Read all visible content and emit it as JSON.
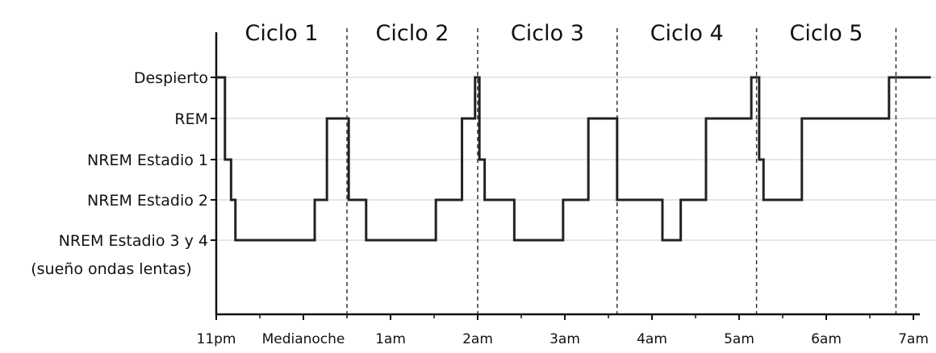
{
  "chart_data": {
    "type": "line",
    "title": "",
    "xlabel": "",
    "ylabel": "",
    "y_levels": [
      {
        "key": "awake",
        "label": "Despierto"
      },
      {
        "key": "rem",
        "label": "REM"
      },
      {
        "key": "n1",
        "label": "NREM Estadio 1"
      },
      {
        "key": "n2",
        "label": "NREM Estadio 2"
      },
      {
        "key": "n34",
        "label": "NREM Estadio 3 y 4"
      }
    ],
    "y_level_note": "(sueño ondas lentas)",
    "x_ticks": [
      "11pm",
      "Medianoche",
      "1am",
      "2am",
      "3am",
      "4am",
      "5am",
      "6am",
      "7am"
    ],
    "x_range_hours": [
      0,
      8.2
    ],
    "cycles": [
      {
        "label": "Ciclo 1",
        "end_hour": 1.5
      },
      {
        "label": "Ciclo 2",
        "end_hour": 3.0
      },
      {
        "label": "Ciclo 3",
        "end_hour": 4.6
      },
      {
        "label": "Ciclo 4",
        "end_hour": 6.2
      },
      {
        "label": "Ciclo 5",
        "end_hour": 7.8
      }
    ],
    "hypnogram": [
      {
        "t": 0.0,
        "level": 0
      },
      {
        "t": 0.1,
        "level": 2
      },
      {
        "t": 0.17,
        "level": 3
      },
      {
        "t": 0.22,
        "level": 4
      },
      {
        "t": 1.13,
        "level": 3
      },
      {
        "t": 1.27,
        "level": 1
      },
      {
        "t": 1.52,
        "level": 3
      },
      {
        "t": 1.72,
        "level": 4
      },
      {
        "t": 2.52,
        "level": 3
      },
      {
        "t": 2.82,
        "level": 1
      },
      {
        "t": 2.97,
        "level": 0
      },
      {
        "t": 3.02,
        "level": 2
      },
      {
        "t": 3.08,
        "level": 3
      },
      {
        "t": 3.42,
        "level": 4
      },
      {
        "t": 3.98,
        "level": 3
      },
      {
        "t": 4.27,
        "level": 1
      },
      {
        "t": 4.6,
        "level": 3
      },
      {
        "t": 5.12,
        "level": 4
      },
      {
        "t": 5.33,
        "level": 3
      },
      {
        "t": 5.62,
        "level": 1
      },
      {
        "t": 6.14,
        "level": 0
      },
      {
        "t": 6.23,
        "level": 2
      },
      {
        "t": 6.28,
        "level": 3
      },
      {
        "t": 6.72,
        "level": 1
      },
      {
        "t": 7.72,
        "level": 0
      },
      {
        "t": 8.2,
        "level": 0
      }
    ],
    "grid": true,
    "line_color": "#222222",
    "gridline_color": "#cccccc",
    "cycle_divider_style": "dashed"
  }
}
